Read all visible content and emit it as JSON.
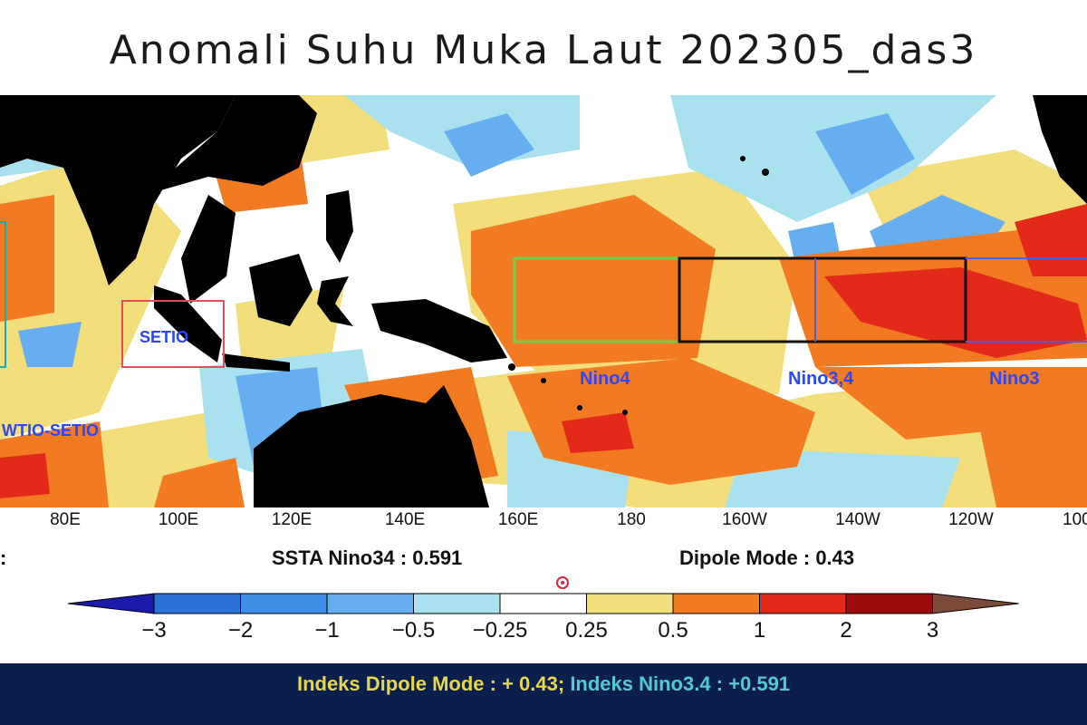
{
  "title": "Anomali Suhu Muka Laut 202305_das3",
  "map": {
    "longitude_ticks": [
      {
        "label": "80E",
        "lon": 80
      },
      {
        "label": "100E",
        "lon": 100
      },
      {
        "label": "120E",
        "lon": 120
      },
      {
        "label": "140E",
        "lon": 140
      },
      {
        "label": "160E",
        "lon": 160
      },
      {
        "label": "180",
        "lon": 180
      },
      {
        "label": "160W",
        "lon": 200
      },
      {
        "label": "140W",
        "lon": 220
      },
      {
        "label": "120W",
        "lon": 240
      },
      {
        "label": "100",
        "lon": 260
      }
    ],
    "regions": [
      {
        "label": "SETIO",
        "outline_color": "#e0505a"
      },
      {
        "label": "WTIO-SETIO",
        "outline_color": ""
      },
      {
        "label": "Nino4",
        "outline_color": "#6ad24a"
      },
      {
        "label": "Nino3,4",
        "outline_color": "#111111"
      },
      {
        "label": "Nino3",
        "outline_color": "#4a5ee0"
      }
    ],
    "land_color": "#000000",
    "label_color": "#2a46ff"
  },
  "stats": {
    "stray_colon": ":",
    "nino34": "SSTA Nino34 : 0.591",
    "dipole": "Dipole Mode : 0.43"
  },
  "colorbar": {
    "labels": [
      "−3",
      "−2",
      "−1",
      "−0.5",
      "−0.25",
      "0.25",
      "0.5",
      "1",
      "2",
      "3"
    ],
    "colors": [
      "#1c1aa8",
      "#2c72d6",
      "#3d8fe8",
      "#66aef0",
      "#a9e1ee",
      "#ffffff",
      "#f3de7c",
      "#f27a20",
      "#e32a1a",
      "#9a0b0b",
      "#7a4a3a"
    ]
  },
  "caption": {
    "dipole": "Indeks Dipole Mode : + 0.43;",
    "nino": " Indeks Nino3.4 : +0.591"
  }
}
